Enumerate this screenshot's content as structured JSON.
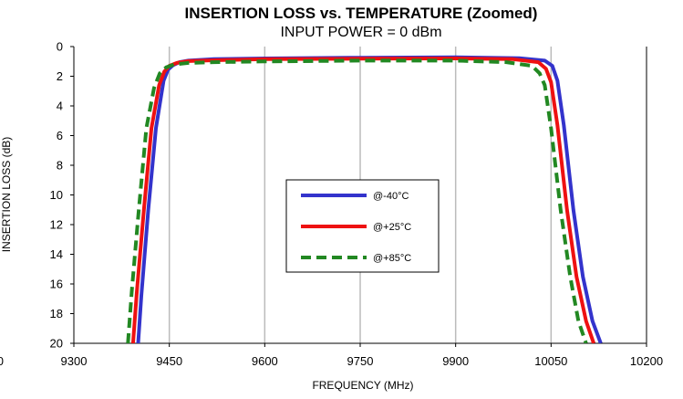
{
  "chart_data": {
    "type": "line",
    "title": "INSERTION LOSS vs. TEMPERATURE (Zoomed)",
    "subtitle": "INPUT POWER = 0 dBm",
    "xlabel": "FREQUENCY (MHz)",
    "ylabel": "INSERTION LOSS (dB)",
    "xlim": [
      9300,
      10200
    ],
    "ylim": [
      0,
      20
    ],
    "y_inverted": true,
    "grid": "vertical",
    "x_ticks": [
      9300,
      9450,
      9600,
      9750,
      9900,
      10050,
      10200
    ],
    "x_tick_labels": [
      "9300",
      "9450",
      "9600",
      "9750",
      "9900",
      "10050",
      "10200"
    ],
    "y_ticks": [
      0,
      2,
      4,
      6,
      8,
      10,
      12,
      14,
      16,
      18,
      20
    ],
    "y_tick_labels": [
      "0",
      "2",
      "4",
      "6",
      "8",
      "10",
      "12",
      "14",
      "16",
      "18",
      "20"
    ],
    "cut_tick_label": "0",
    "legend_position": "center",
    "series": [
      {
        "name": "@-40°C",
        "color": "#3333cc",
        "dash": "solid",
        "x": [
          9401,
          9406,
          9417,
          9429,
          9441,
          9448,
          9456,
          9466,
          9480,
          9520,
          9600,
          9750,
          9900,
          10000,
          10040,
          10052,
          10060,
          10070,
          10085,
          10100,
          10115,
          10128
        ],
        "y": [
          20,
          16.8,
          11,
          5.5,
          2.3,
          1.55,
          1.25,
          1.05,
          0.95,
          0.85,
          0.8,
          0.75,
          0.72,
          0.78,
          0.95,
          1.3,
          2.3,
          5.3,
          11,
          15.5,
          18.5,
          20
        ]
      },
      {
        "name": "@+25°C",
        "color": "#ee1111",
        "dash": "solid",
        "x": [
          9393,
          9399,
          9410,
          9422,
          9434,
          9442,
          9450,
          9462,
          9480,
          9520,
          9600,
          9750,
          9900,
          9990,
          10030,
          10042,
          10050,
          10060,
          10075,
          10090,
          10105,
          10117
        ],
        "y": [
          20,
          16.5,
          11,
          5.5,
          2.6,
          1.7,
          1.3,
          1.1,
          0.98,
          0.92,
          0.85,
          0.82,
          0.8,
          0.85,
          1.05,
          1.5,
          2.4,
          5.3,
          11,
          15.5,
          18.5,
          20
        ]
      },
      {
        "name": "@+85°C",
        "color": "#228822",
        "dash": "dashed",
        "x": [
          9385,
          9391,
          9402,
          9414,
          9426,
          9435,
          9445,
          9458,
          9480,
          9520,
          9600,
          9750,
          9900,
          9980,
          10020,
          10032,
          10040,
          10050,
          10065,
          10080,
          10093,
          10105
        ],
        "y": [
          20,
          16.5,
          11,
          5.5,
          2.8,
          1.8,
          1.4,
          1.2,
          1.1,
          1.05,
          1.0,
          0.95,
          0.95,
          1.05,
          1.3,
          1.8,
          2.6,
          5.5,
          11,
          15.5,
          18.5,
          20
        ]
      }
    ]
  }
}
